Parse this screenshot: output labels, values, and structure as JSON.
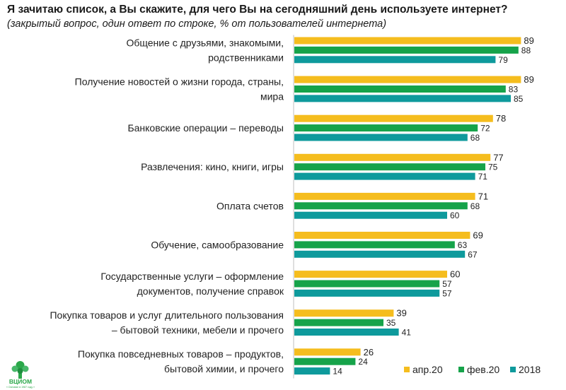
{
  "title": "Я зачитаю список, а Вы скажите, для чего Вы на сегодняшний день используете интернет?",
  "subtitle": "(закрытый вопрос, один ответ по строке, % от пользователей интернета)",
  "logo": {
    "text": "ВЦИОМ",
    "tagline": "« Основан в 1987 году »"
  },
  "colors": {
    "apr20": "#F5BD1E",
    "feb20": "#16A34A",
    "y2018": "#0E9A9C"
  },
  "chart_data": {
    "type": "bar",
    "orientation": "horizontal",
    "title": "Я зачитаю список, а Вы скажите, для чего Вы на сегодняшний день используете интернет?",
    "subtitle": "(закрытый вопрос, один ответ по строке, % от пользователей интернета)",
    "unit": "%",
    "xlim": [
      0,
      100
    ],
    "legend_position": "bottom-right",
    "categories": [
      [
        "Общение с друзьями, знакомыми,",
        "родственниками"
      ],
      [
        "Получение новостей о жизни города, страны,",
        "мира"
      ],
      [
        "Банковские операции – переводы"
      ],
      [
        "Развлечения: кино, книги, игры"
      ],
      [
        "Оплата счетов"
      ],
      [
        "Обучение, самообразование"
      ],
      [
        "Государственные услуги – оформление",
        "документов, получение справок"
      ],
      [
        "Покупка товаров и услуг длительного пользования",
        "– бытовой техники, мебели и прочего"
      ],
      [
        "Покупка повседневных товаров – продуктов,",
        "бытовой химии, и прочего"
      ]
    ],
    "series": [
      {
        "name": "апр.20",
        "color": "#F5BD1E",
        "values": [
          89,
          89,
          78,
          77,
          71,
          69,
          60,
          39,
          26
        ]
      },
      {
        "name": "фев.20",
        "color": "#16A34A",
        "values": [
          88,
          83,
          72,
          75,
          68,
          63,
          57,
          35,
          24
        ]
      },
      {
        "name": "2018",
        "color": "#0E9A9C",
        "values": [
          79,
          85,
          68,
          71,
          60,
          67,
          57,
          41,
          14
        ]
      }
    ]
  }
}
